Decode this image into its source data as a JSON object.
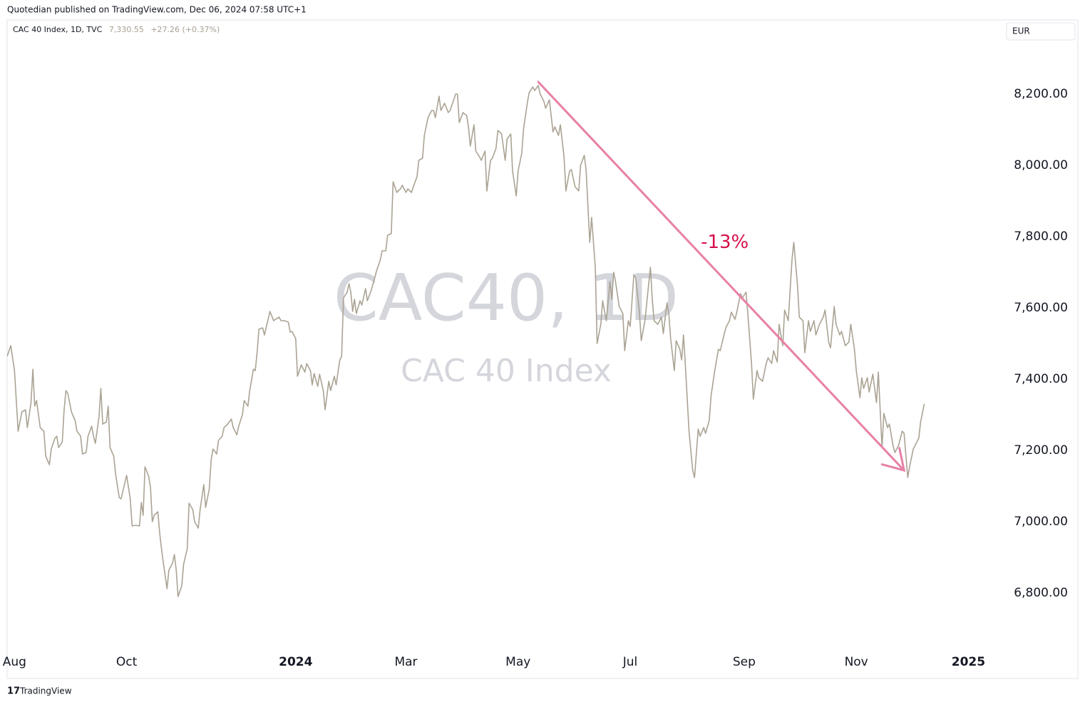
{
  "header": "Quotedian published on TradingView.com, Dec 06, 2024 07:58 UTC+1",
  "footer": "TradingView",
  "chart_data": {
    "type": "line",
    "currency": "EUR",
    "watermark": [
      "CAC40, 1D",
      "CAC 40 Index"
    ],
    "legend_last": "7,330.55",
    "legend_change": "+27.26 (+0.37%)",
    "x": [
      -4,
      -2,
      0,
      2,
      4,
      6,
      7,
      9,
      10,
      11,
      12,
      14,
      16,
      17,
      19,
      20,
      22,
      23,
      24,
      26,
      27,
      28,
      29,
      31,
      33,
      34,
      36,
      37,
      39,
      40,
      42,
      43,
      44,
      46,
      47,
      48,
      50,
      51,
      52,
      54,
      55,
      57,
      58,
      60,
      61,
      63,
      64,
      66,
      68,
      69,
      70,
      71,
      73,
      74,
      75,
      76,
      78,
      79,
      80,
      81,
      83,
      84,
      86,
      87,
      88,
      89,
      91,
      92,
      94,
      95,
      97,
      98,
      100,
      101,
      103,
      104,
      106,
      107,
      108,
      110,
      111,
      113,
      114,
      116,
      118,
      119,
      121,
      122,
      124,
      125,
      127,
      128,
      130,
      131,
      132,
      133,
      135,
      136,
      138,
      139,
      141,
      142,
      144,
      145,
      147,
      149,
      150,
      151,
      153,
      154,
      156,
      158,
      159,
      161,
      162,
      163,
      165,
      166,
      168,
      169,
      171,
      172,
      174,
      175,
      177,
      178,
      179,
      181,
      182,
      183,
      184,
      185,
      186,
      188,
      189,
      191,
      192,
      194,
      196,
      197,
      199,
      200,
      202,
      203,
      205,
      206,
      208,
      210,
      211,
      213,
      214,
      216,
      217,
      219,
      220,
      222,
      223,
      225,
      227,
      228,
      229,
      231,
      232,
      234,
      236,
      237,
      239,
      240,
      241,
      242,
      244,
      246,
      247,
      248,
      250,
      251,
      253,
      254,
      256,
      257,
      259,
      260,
      262,
      263,
      265,
      267,
      268,
      270,
      271,
      273,
      274,
      276,
      277,
      279,
      280,
      282,
      283,
      285,
      286,
      288,
      289,
      291,
      293,
      294,
      296,
      297,
      299,
      300,
      302,
      303,
      305,
      307,
      308,
      310,
      311,
      313,
      314,
      316,
      317,
      319,
      320,
      322,
      324,
      325,
      326,
      327,
      329,
      331,
      332,
      334,
      335,
      337,
      338,
      340,
      341,
      343,
      344,
      346,
      347,
      348,
      350,
      352,
      353,
      355,
      356,
      357,
      359,
      360,
      362,
      363,
      364,
      365,
      367,
      369,
      370,
      372,
      373,
      375,
      376,
      378,
      379,
      381,
      383,
      384,
      386,
      387,
      389,
      390,
      392,
      393,
      395,
      396,
      398,
      399,
      401,
      402,
      404,
      405,
      407,
      409,
      410,
      412,
      413,
      415,
      416,
      418,
      419,
      421,
      423,
      424,
      426,
      427,
      429,
      430,
      432,
      433,
      435,
      436,
      438,
      440,
      441,
      443,
      444,
      446,
      447,
      449,
      450,
      452,
      454,
      455,
      457,
      458,
      460,
      461,
      462,
      464,
      465,
      467,
      469,
      470,
      472,
      473,
      475,
      476,
      478,
      479,
      481,
      483,
      484,
      486,
      487,
      489,
      490,
      492,
      493,
      495
    ],
    "series": [
      {
        "name": "CAC 40 Index, 1D, TVC",
        "color": "#ab a394",
        "values": [
          7464,
          7494,
          7424,
          7254,
          7308,
          7314,
          7264,
          7334,
          7428,
          7324,
          7340,
          7264,
          7254,
          7184,
          7160,
          7204,
          7234,
          7240,
          7208,
          7224,
          7314,
          7368,
          7360,
          7308,
          7284,
          7254,
          7240,
          7190,
          7194,
          7240,
          7268,
          7240,
          7220,
          7294,
          7374,
          7274,
          7280,
          7324,
          7208,
          7184,
          7134,
          7068,
          7064,
          7108,
          7130,
          7064,
          6988,
          6990,
          6988,
          7054,
          7018,
          7154,
          7128,
          7096,
          7000,
          7018,
          7028,
          6968,
          6924,
          6884,
          6812,
          6864,
          6884,
          6908,
          6864,
          6790,
          6820,
          6880,
          6924,
          7052,
          7034,
          7000,
          6982,
          7034,
          7104,
          7040,
          7092,
          7174,
          7204,
          7190,
          7228,
          7240,
          7264,
          7274,
          7288,
          7264,
          7244,
          7268,
          7300,
          7340,
          7324,
          7368,
          7428,
          7424,
          7474,
          7540,
          7544,
          7524,
          7568,
          7590,
          7564,
          7568,
          7574,
          7564,
          7564,
          7560,
          7532,
          7534,
          7514,
          7408,
          7440,
          7420,
          7444,
          7424,
          7384,
          7416,
          7380,
          7414,
          7368,
          7314,
          7394,
          7368,
          7408,
          7384,
          7454,
          7464,
          7628,
          7644,
          7668,
          7644,
          7590,
          7624,
          7584,
          7620,
          7608,
          7654,
          7620,
          7648,
          7684,
          7704,
          7734,
          7760,
          7760,
          7804,
          7808,
          7954,
          7924,
          7934,
          7944,
          7924,
          7934,
          7924,
          7940,
          7968,
          8014,
          8020,
          8084,
          8134,
          8154,
          8154,
          8134,
          8194,
          8154,
          8174,
          8148,
          8154,
          8184,
          8200,
          8200,
          8120,
          8148,
          8140,
          8108,
          8054,
          8114,
          8040,
          8024,
          8014,
          8040,
          7928,
          8014,
          8020,
          8048,
          8098,
          8088,
          8014,
          8074,
          8088,
          7984,
          7914,
          7984,
          8034,
          8104,
          8174,
          8204,
          8220,
          8210,
          8224,
          8200,
          8180,
          8160,
          8184,
          8094,
          8108,
          8084,
          8114,
          8024,
          7928,
          7984,
          7988,
          7940,
          7928,
          8000,
          8028,
          7988,
          7784,
          7854,
          7714,
          7500,
          7554,
          7620,
          7564,
          7674,
          7624,
          7700,
          7674,
          7604,
          7584,
          7480,
          7564,
          7548,
          7694,
          7684,
          7588,
          7508,
          7564,
          7614,
          7714,
          7624,
          7564,
          7554,
          7574,
          7528,
          7614,
          7584,
          7514,
          7424,
          7508,
          7484,
          7454,
          7524,
          7440,
          7254,
          7144,
          7124,
          7260,
          7240,
          7264,
          7248,
          7284,
          7354,
          7424,
          7484,
          7480,
          7524,
          7544,
          7564,
          7588,
          7568,
          7588,
          7640,
          7628,
          7644,
          7584,
          7444,
          7344,
          7424,
          7404,
          7394,
          7444,
          7460,
          7444,
          7480,
          7448,
          7554,
          7494,
          7594,
          7564,
          7734,
          7784,
          7664,
          7574,
          7564,
          7474,
          7564,
          7534,
          7564,
          7524,
          7554,
          7574,
          7594,
          7504,
          7488,
          7604,
          7554,
          7524,
          7534,
          7494,
          7504,
          7554,
          7484,
          7424,
          7348,
          7404,
          7374,
          7404,
          7364,
          7414,
          7334,
          7420,
          7208,
          7304,
          7264,
          7274,
          7214,
          7194,
          7214,
          7254,
          7248,
          7124,
          7154,
          7204,
          7214,
          7234,
          7280,
          7330.55
        ]
      }
    ],
    "xlim": [
      -4,
      539
    ],
    "xticks": [
      {
        "value": 0,
        "label": "Aug"
      },
      {
        "value": 61,
        "label": "Oct"
      },
      {
        "value": 153,
        "label": "2024"
      },
      {
        "value": 213,
        "label": "Mar"
      },
      {
        "value": 274,
        "label": "May"
      },
      {
        "value": 335,
        "label": "Jul"
      },
      {
        "value": 397,
        "label": "Sep"
      },
      {
        "value": 458,
        "label": "Nov"
      },
      {
        "value": 519,
        "label": "2025"
      }
    ],
    "ylim": [
      6640,
      8408
    ],
    "yticks": [
      {
        "value": 6800,
        "label": "6,800.00"
      },
      {
        "value": 7000,
        "label": "7,000.00"
      },
      {
        "value": 7200,
        "label": "7,200.00"
      },
      {
        "value": 7400,
        "label": "7,400.00"
      },
      {
        "value": 7600,
        "label": "7,600.00"
      },
      {
        "value": 7800,
        "label": "7,800.00"
      },
      {
        "value": 8000,
        "label": "8,000.00"
      },
      {
        "value": 8200,
        "label": "8,200.00"
      }
    ],
    "grid": false,
    "annotation": {
      "text": "-13%",
      "color": "#e880a6",
      "text_color": "#d6104a",
      "from": {
        "x": 285,
        "y": 8234
      },
      "to": {
        "x": 484,
        "y": 7144
      }
    }
  }
}
